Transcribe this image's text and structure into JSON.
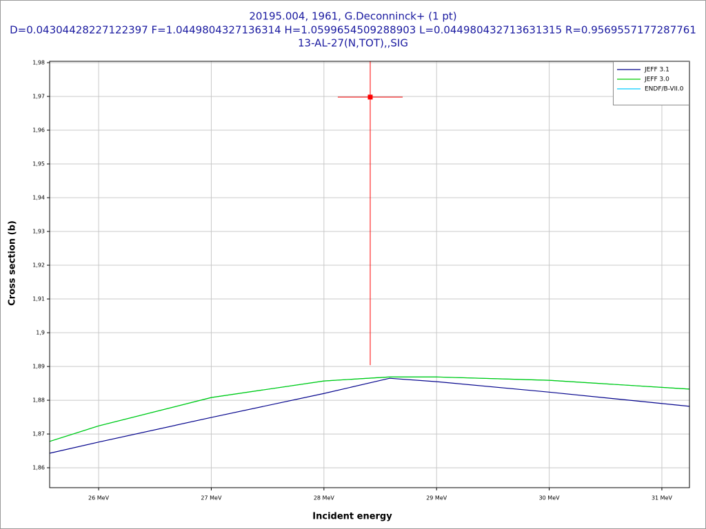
{
  "chart_data": {
    "type": "line",
    "title": [
      "20195.004, 1961, G.Deconninck+ (1 pt)",
      "D=0.04304428227122397 F=1.0449804327136314 H=1.0599654509288903 L=0.044980432713631315 R=0.9569557177287761",
      "13-AL-27(N,TOT),,SIG"
    ],
    "x_label": "Incident energy",
    "y_label": "Cross section (b)",
    "xlim": [
      25.565,
      31.245
    ],
    "ylim": [
      1.8541,
      1.9804
    ],
    "xticks": [
      {
        "value": 26,
        "label": "26 MeV"
      },
      {
        "value": 27,
        "label": "27 MeV"
      },
      {
        "value": 28,
        "label": "28 MeV"
      },
      {
        "value": 29,
        "label": "29 MeV"
      },
      {
        "value": 30,
        "label": "30 MeV"
      },
      {
        "value": 31,
        "label": "31 MeV"
      }
    ],
    "yticks": [
      {
        "value": 1.86,
        "label": "1,86"
      },
      {
        "value": 1.87,
        "label": "1,87"
      },
      {
        "value": 1.88,
        "label": "1,88"
      },
      {
        "value": 1.89,
        "label": "1,89"
      },
      {
        "value": 1.9,
        "label": "1,9"
      },
      {
        "value": 1.91,
        "label": "1,91"
      },
      {
        "value": 1.92,
        "label": "1,92"
      },
      {
        "value": 1.93,
        "label": "1,93"
      },
      {
        "value": 1.94,
        "label": "1,94"
      },
      {
        "value": 1.95,
        "label": "1,95"
      },
      {
        "value": 1.96,
        "label": "1,96"
      },
      {
        "value": 1.97,
        "label": "1,97"
      },
      {
        "value": 1.98,
        "label": "1,98"
      }
    ],
    "grid": true,
    "legend": "top-right",
    "series": [
      {
        "name": "JEFF 3.1",
        "color": "#00008b",
        "x": [
          25.565,
          26,
          27,
          28,
          28.583,
          29,
          30,
          31.245
        ],
        "values": [
          1.8643,
          1.8676,
          1.8749,
          1.882,
          1.8865,
          1.8855,
          1.8824,
          1.8782
        ]
      },
      {
        "name": "JEFF 3.0",
        "color": "#00cc00",
        "x": [
          25.565,
          26,
          27,
          28,
          28.583,
          29,
          30,
          31.245
        ],
        "values": [
          1.8678,
          1.8724,
          1.8808,
          1.8857,
          1.8869,
          1.8869,
          1.8859,
          1.8833
        ]
      },
      {
        "name": "ENDF/B-VII.0",
        "color": "#00ccff",
        "x": [
          25.565,
          26,
          27,
          28,
          28.583,
          29,
          30,
          31.245
        ],
        "values": [
          1.8678,
          1.8724,
          1.8808,
          1.8857,
          1.8869,
          1.8869,
          1.8859,
          1.8833
        ]
      }
    ],
    "points": {
      "color": "#ff0000",
      "x": [
        28.411
      ],
      "values": [
        1.9698
      ],
      "xerr": [
        0.288
      ],
      "yerr": [
        0.0794
      ]
    }
  }
}
